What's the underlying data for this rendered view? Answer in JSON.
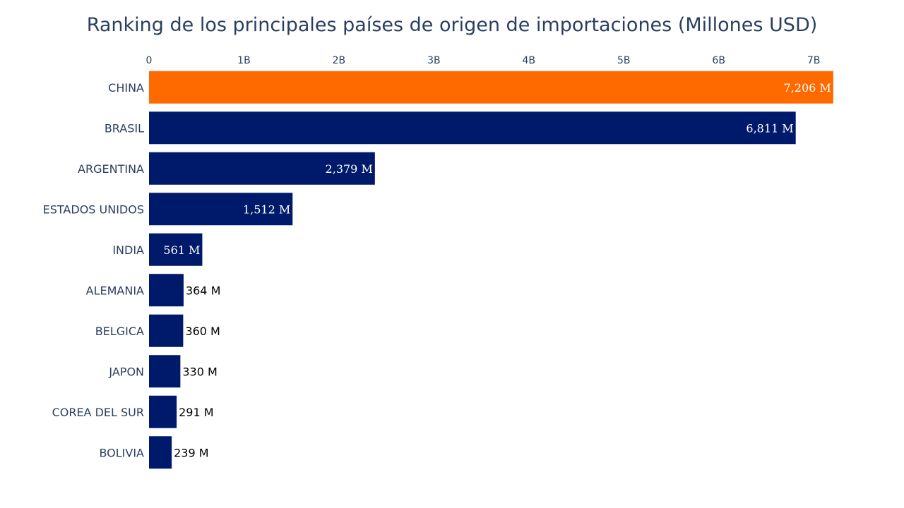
{
  "chart_data": {
    "type": "bar",
    "orientation": "horizontal",
    "title": "Ranking de los principales países de origen de importaciones (Millones USD)",
    "xlabel": "",
    "ylabel": "",
    "xlim": [
      0,
      7200000000
    ],
    "x_ticks": [
      0,
      1000000000,
      2000000000,
      3000000000,
      4000000000,
      5000000000,
      6000000000,
      7000000000
    ],
    "x_tick_labels": [
      "0",
      "1B",
      "2B",
      "3B",
      "4B",
      "5B",
      "6B",
      "7B"
    ],
    "x_axis_position": "top",
    "grid": false,
    "legend": "none",
    "categories": [
      "CHINA",
      "BRASIL",
      "ARGENTINA",
      "ESTADOS UNIDOS",
      "INDIA",
      "ALEMANIA",
      "BELGICA",
      "JAPON",
      "COREA DEL SUR",
      "BOLIVIA"
    ],
    "values": [
      7206000000,
      6811000000,
      2379000000,
      1512000000,
      561000000,
      364000000,
      360000000,
      330000000,
      291000000,
      239000000
    ],
    "value_labels": [
      "7,206 M",
      "6,811 M",
      "2,379 M",
      "1,512 M",
      "561 M",
      "364 M",
      "360 M",
      "330 M",
      "291 M",
      "239 M"
    ],
    "colors": {
      "highlight": "#ff6a00",
      "default": "#001a6b",
      "label_inside": "#ffffff",
      "label_outside": "#000000"
    }
  }
}
